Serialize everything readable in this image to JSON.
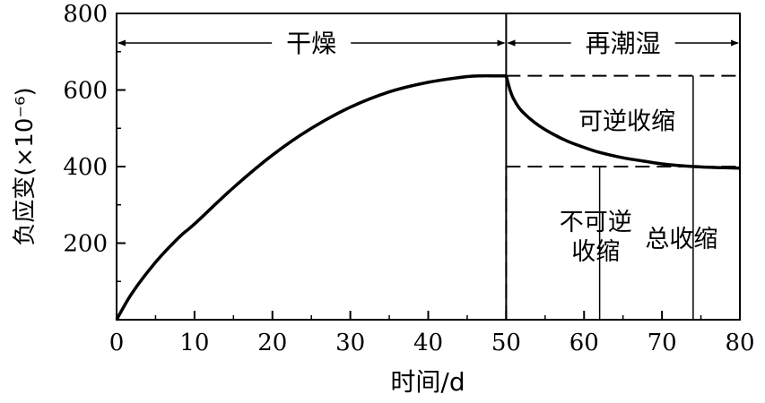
{
  "chart_data": {
    "type": "line",
    "ylabel": "负应变(×10⁻⁶)",
    "xlabel": "时间/d",
    "xlim": [
      0,
      80
    ],
    "ylim": [
      0,
      800
    ],
    "x_ticks": [
      0,
      10,
      20,
      30,
      40,
      50,
      60,
      70,
      80
    ],
    "y_ticks": [
      200,
      400,
      600,
      800
    ],
    "grid": false,
    "series": [
      {
        "x": [
          0,
          2,
          5,
          8,
          10,
          15,
          20,
          25,
          30,
          35,
          40,
          45,
          47,
          48,
          50
        ],
        "y": [
          0,
          70,
          150,
          215,
          250,
          345,
          430,
          500,
          555,
          595,
          620,
          635,
          637,
          637,
          637
        ]
      },
      {
        "x": [
          50,
          50.5,
          51,
          52,
          54,
          56,
          58,
          60,
          62,
          65,
          68,
          70,
          72,
          75,
          78,
          80
        ],
        "y": [
          637,
          600,
          575,
          545,
          510,
          485,
          465,
          450,
          437,
          423,
          413,
          407,
          403,
          399,
          397,
          396
        ]
      }
    ],
    "reference_lines": [
      {
        "type": "vertical",
        "x": 50,
        "style": "solid"
      },
      {
        "type": "horizontal",
        "y": 637,
        "x_range": [
          50,
          80
        ],
        "style": "dashed"
      },
      {
        "type": "horizontal",
        "y": 400,
        "x_range": [
          50,
          80
        ],
        "style": "dashed"
      },
      {
        "type": "vertical",
        "x": 50,
        "y_range": [
          0,
          400
        ],
        "style": "dashed"
      }
    ],
    "phases": [
      {
        "label": "干燥",
        "x_range": [
          0,
          50
        ]
      },
      {
        "label": "再潮湿",
        "x_range": [
          50,
          80
        ]
      }
    ],
    "annotations": [
      {
        "text": "可逆收缩",
        "x": 65.5,
        "y": 518
      },
      {
        "text": "不可逆",
        "x": 61.5,
        "y": 255
      },
      {
        "text": "收缩",
        "x": 61.5,
        "y": 178
      },
      {
        "text": "总收缩",
        "x": 72.5,
        "y": 210
      }
    ],
    "markers": [
      {
        "label_ref": "不可逆收缩",
        "x": 62,
        "y_range": [
          0,
          400
        ]
      },
      {
        "label_ref": "总收缩",
        "x": 74,
        "y_range": [
          0,
          637
        ]
      }
    ]
  }
}
